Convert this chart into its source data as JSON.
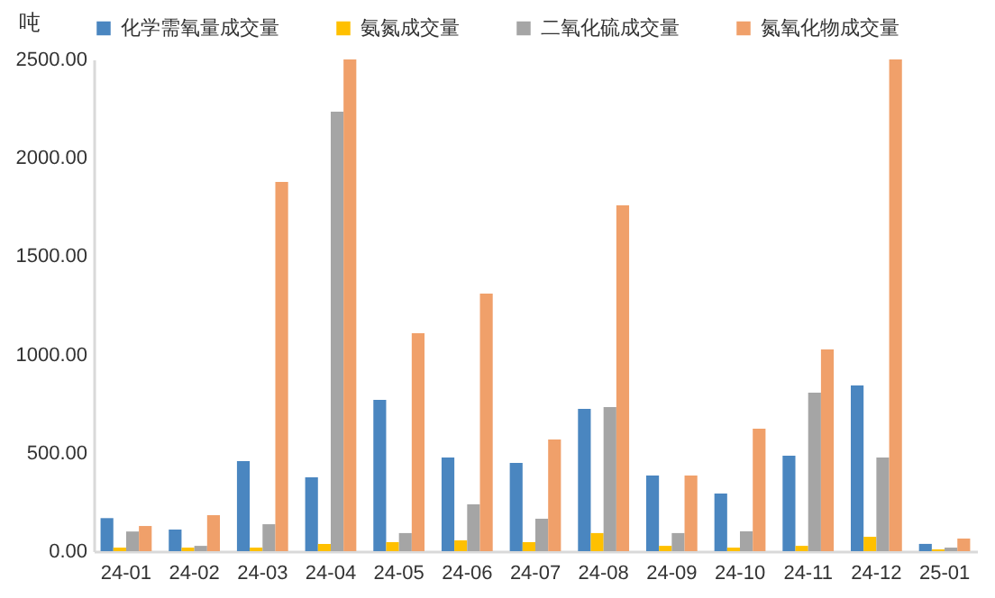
{
  "chart_data": {
    "type": "bar",
    "ylabel": "吨",
    "categories": [
      "24-01",
      "24-02",
      "24-03",
      "24-04",
      "24-05",
      "24-06",
      "24-07",
      "24-08",
      "24-09",
      "24-10",
      "24-11",
      "24-12",
      "25-01"
    ],
    "series": [
      {
        "name": "化学需氧量成交量",
        "color": "#4a86c0",
        "values": [
          168,
          110,
          458,
          375,
          769,
          476,
          449,
          723,
          385,
          293,
          485,
          842,
          37
        ]
      },
      {
        "name": "氨氮成交量",
        "color": "#ffc000",
        "values": [
          18,
          18,
          18,
          37,
          46,
          55,
          46,
          92,
          27,
          18,
          27,
          73,
          9
        ]
      },
      {
        "name": "二氧化硫成交量",
        "color": "#a5a5a5",
        "values": [
          100,
          27,
          137,
          2234,
          92,
          238,
          165,
          733,
          92,
          101,
          806,
          476,
          18
        ]
      },
      {
        "name": "氮氧化物成交量",
        "color": "#f0a06a",
        "values": [
          128,
          183,
          1877,
          2500,
          1108,
          1310,
          568,
          1758,
          385,
          623,
          1026,
          2500,
          64
        ]
      }
    ],
    "ylim": [
      0,
      2500
    ],
    "yticks": [
      {
        "value": 0,
        "label": "0.00"
      },
      {
        "value": 500,
        "label": "500.00"
      },
      {
        "value": 1000,
        "label": "1000.00"
      },
      {
        "value": 1500,
        "label": "1500.00"
      },
      {
        "value": 2000,
        "label": "2000.00"
      },
      {
        "value": 2500,
        "label": "2500.00"
      }
    ],
    "grid": false,
    "legend": "top"
  }
}
